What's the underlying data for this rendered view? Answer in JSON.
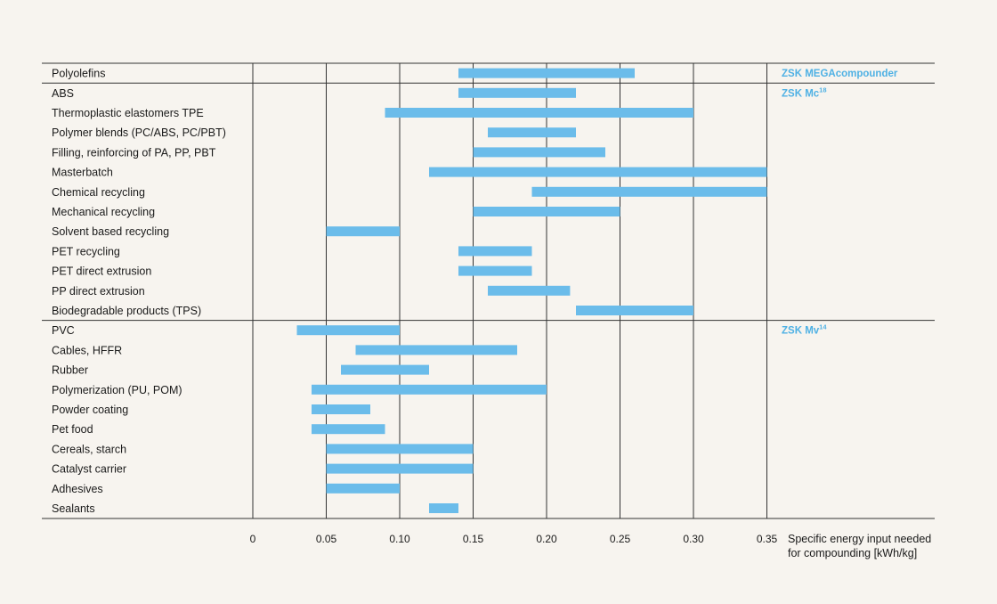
{
  "chart_data": {
    "type": "bar",
    "subtype": "floating-range-horizontal",
    "xlabel_lines": [
      "Specific energy input needed",
      "for compounding [kWh/kg]"
    ],
    "xlim": [
      0,
      0.35
    ],
    "xticks": [
      "0",
      "0.05",
      "0.10",
      "0.15",
      "0.20",
      "0.25",
      "0.30",
      "0.35"
    ],
    "xtick_values": [
      0,
      0.05,
      0.1,
      0.15,
      0.2,
      0.25,
      0.3,
      0.35
    ],
    "grid": "vertical",
    "bar_color": "#6bbcea",
    "group_label_color": "#4fb1e4",
    "rule_color": "#333333",
    "groups": [
      {
        "label": "ZSK MEGAcompounder",
        "superscript": "",
        "categories": [
          {
            "name": "Polyolefins",
            "range": [
              0.14,
              0.26
            ]
          }
        ]
      },
      {
        "label": "ZSK Mc",
        "superscript": "18",
        "categories": [
          {
            "name": "ABS",
            "range": [
              0.14,
              0.22
            ]
          },
          {
            "name": "Thermoplastic elastomers TPE",
            "range": [
              0.09,
              0.3
            ]
          },
          {
            "name": "Polymer blends (PC/ABS, PC/PBT)",
            "range": [
              0.16,
              0.22
            ]
          },
          {
            "name": "Filling, reinforcing of PA, PP, PBT",
            "range": [
              0.15,
              0.24
            ]
          },
          {
            "name": "Masterbatch",
            "range": [
              0.12,
              0.35
            ]
          },
          {
            "name": "Chemical recycling",
            "range": [
              0.19,
              0.35
            ]
          },
          {
            "name": "Mechanical recycling",
            "range": [
              0.15,
              0.25
            ]
          },
          {
            "name": "Solvent based recycling",
            "range": [
              0.05,
              0.1
            ]
          },
          {
            "name": "PET recycling",
            "range": [
              0.14,
              0.19
            ]
          },
          {
            "name": "PET direct extrusion",
            "range": [
              0.14,
              0.19
            ]
          },
          {
            "name": "PP direct extrusion",
            "range": [
              0.16,
              0.216
            ]
          },
          {
            "name": "Biodegradable products (TPS)",
            "range": [
              0.22,
              0.3
            ]
          }
        ]
      },
      {
        "label": "ZSK Mv",
        "superscript": "14",
        "categories": [
          {
            "name": "PVC",
            "range": [
              0.03,
              0.1
            ]
          },
          {
            "name": "Cables, HFFR",
            "range": [
              0.07,
              0.18
            ]
          },
          {
            "name": "Rubber",
            "range": [
              0.06,
              0.12
            ]
          },
          {
            "name": "Polymerization (PU, POM)",
            "range": [
              0.04,
              0.2
            ]
          },
          {
            "name": "Powder coating",
            "range": [
              0.04,
              0.08
            ]
          },
          {
            "name": "Pet food",
            "range": [
              0.04,
              0.09
            ]
          },
          {
            "name": "Cereals, starch",
            "range": [
              0.05,
              0.15
            ]
          },
          {
            "name": "Catalyst carrier",
            "range": [
              0.05,
              0.15
            ]
          },
          {
            "name": "Adhesives",
            "range": [
              0.05,
              0.1
            ]
          },
          {
            "name": "Sealants",
            "range": [
              0.12,
              0.14
            ]
          }
        ]
      }
    ]
  }
}
